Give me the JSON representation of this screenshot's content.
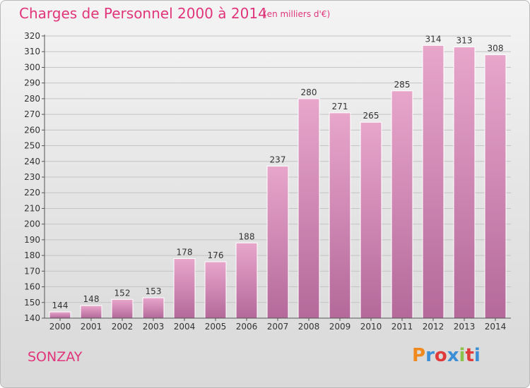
{
  "header": {
    "title": "Charges de Personnel 2000 à 2014",
    "subtitle": "(en milliers d'€)"
  },
  "footer": {
    "city": "SONZAY",
    "brand": "Proxiti"
  },
  "colors": {
    "accent": "#e0357a",
    "bar_top": "#e8a6cb",
    "bar_bottom": "#b4699a",
    "brand_letters": [
      "#f08a1e",
      "#3b8fd6",
      "#e03b3b",
      "#3b8fd6",
      "#8bc34a",
      "#e03b3b",
      "#3b8fd6"
    ]
  },
  "chart_data": {
    "type": "bar",
    "title": "Charges de Personnel 2000 à 2014",
    "subtitle": "(en milliers d'€)",
    "categories": [
      "2000",
      "2001",
      "2002",
      "2003",
      "2004",
      "2005",
      "2006",
      "2007",
      "2008",
      "2009",
      "2010",
      "2011",
      "2012",
      "2013",
      "2014"
    ],
    "values": [
      144,
      148,
      152,
      153,
      178,
      176,
      188,
      237,
      280,
      271,
      265,
      285,
      314,
      313,
      308
    ],
    "ylim": [
      140,
      320
    ],
    "yticks": [
      140,
      150,
      160,
      170,
      180,
      190,
      200,
      210,
      220,
      230,
      240,
      250,
      260,
      270,
      280,
      290,
      300,
      310,
      320
    ],
    "grid": true
  }
}
